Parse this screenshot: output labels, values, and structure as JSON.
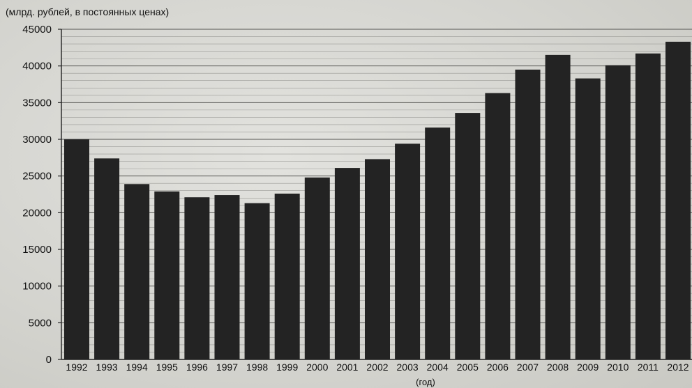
{
  "chart_data": {
    "type": "bar",
    "title": "",
    "subtitle": "(млрд. рублей, в постоянных ценах)",
    "xlabel": "(год)",
    "ylabel": "",
    "ylim": [
      0,
      45000
    ],
    "yticks": [
      0,
      5000,
      10000,
      15000,
      20000,
      25000,
      30000,
      35000,
      40000,
      45000
    ],
    "grid": true,
    "legend": "none",
    "bar_color": "#232323",
    "categories": [
      "1992",
      "1993",
      "1994",
      "1995",
      "1996",
      "1997",
      "1998",
      "1999",
      "2000",
      "2001",
      "2002",
      "2003",
      "2004",
      "2005",
      "2006",
      "2007",
      "2008",
      "2009",
      "2010",
      "2011",
      "2012"
    ],
    "values": [
      30000,
      27400,
      23900,
      22900,
      22100,
      22400,
      21300,
      22600,
      24800,
      26100,
      27300,
      29400,
      31600,
      33600,
      36300,
      39500,
      41500,
      38300,
      40100,
      41700,
      43300
    ]
  }
}
